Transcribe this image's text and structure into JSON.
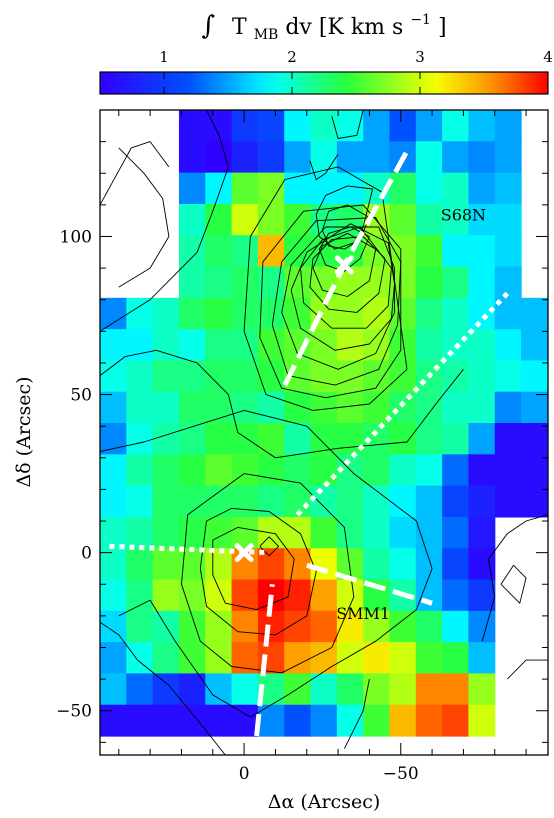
{
  "chart_data": {
    "type": "heatmap",
    "title": "∫ T_MB dv [K km s^-1]",
    "title_parts": {
      "integral": "∫",
      "t": "T",
      "sub": "MB",
      "mid": " dv [K km s",
      "sup": "−1",
      "end": "]"
    },
    "xlabel": "Δα (Arcsec)",
    "ylabel": "Δδ (Arcsec)",
    "xlim": [
      46,
      -97
    ],
    "ylim": [
      -64,
      140
    ],
    "x_ticks": [
      {
        "value": 0,
        "label": "0"
      },
      {
        "value": -50,
        "label": "−50"
      }
    ],
    "y_ticks": [
      {
        "value": -50,
        "label": "−50"
      },
      {
        "value": 0,
        "label": "0"
      },
      {
        "value": 50,
        "label": "50"
      },
      {
        "value": 100,
        "label": "100"
      }
    ],
    "colorbar": {
      "min": 0.5,
      "max": 4,
      "ticks": [
        {
          "value": 1,
          "label": "1"
        },
        {
          "value": 2,
          "label": "2"
        },
        {
          "value": 3,
          "label": "3"
        },
        {
          "value": 4,
          "label": "4"
        }
      ]
    },
    "grid": {
      "x0": 46,
      "dx": -8.4,
      "y_top": 140,
      "dy": -9.9,
      "ncols": 17,
      "nrows": 20
    },
    "cells": [
      [
        null,
        null,
        null,
        0.6,
        0.6,
        1.0,
        1.1,
        1.8,
        2.0,
        1.9,
        1.5,
        1.2,
        1.5,
        1.9,
        1.6,
        1.5,
        null
      ],
      [
        null,
        null,
        null,
        0.6,
        0.5,
        0.8,
        1.0,
        1.5,
        1.9,
        1.5,
        1.5,
        1.4,
        1.9,
        1.5,
        1.4,
        1.5,
        null
      ],
      [
        null,
        null,
        null,
        1.4,
        1.8,
        2.6,
        2.7,
        1.8,
        1.8,
        1.8,
        2.0,
        2.3,
        1.9,
        2.0,
        1.5,
        1.6,
        null
      ],
      [
        null,
        null,
        null,
        2.0,
        2.4,
        3.0,
        2.7,
        2.5,
        2.2,
        2.3,
        2.8,
        2.6,
        2.1,
        2.0,
        1.7,
        1.7,
        null
      ],
      [
        null,
        null,
        null,
        2.1,
        2.3,
        2.2,
        3.4,
        2.4,
        2.4,
        2.4,
        2.7,
        2.7,
        2.5,
        1.8,
        1.8,
        1.7,
        null
      ],
      [
        null,
        null,
        null,
        2.1,
        2.2,
        2.3,
        2.2,
        2.6,
        2.7,
        2.8,
        2.8,
        2.7,
        2.4,
        2.2,
        1.8,
        1.6,
        null
      ],
      [
        1.4,
        1.9,
        2.0,
        2.3,
        2.4,
        2.3,
        2.3,
        2.5,
        2.8,
        2.8,
        2.9,
        2.6,
        2.2,
        2.0,
        1.8,
        1.6,
        1.6
      ],
      [
        1.8,
        1.8,
        2.0,
        1.9,
        2.2,
        2.2,
        2.5,
        2.6,
        2.7,
        2.9,
        2.8,
        2.5,
        2.1,
        2.0,
        2.0,
        1.8,
        1.6
      ],
      [
        1.9,
        2.0,
        2.2,
        2.2,
        2.3,
        2.3,
        2.4,
        2.6,
        2.7,
        2.7,
        2.6,
        2.5,
        2.2,
        2.1,
        2.0,
        1.9,
        1.8
      ],
      [
        1.6,
        2.0,
        2.0,
        2.3,
        2.3,
        2.2,
        2.1,
        2.4,
        2.5,
        2.6,
        2.5,
        2.3,
        2.2,
        2.0,
        2.0,
        1.4,
        1.5
      ],
      [
        1.4,
        1.9,
        2.1,
        2.2,
        2.4,
        2.4,
        2.5,
        2.1,
        2.4,
        2.4,
        2.3,
        2.4,
        2.2,
        2.1,
        1.5,
        0.6,
        0.6
      ],
      [
        1.8,
        2.1,
        2.3,
        2.4,
        2.6,
        2.5,
        2.4,
        2.3,
        2.4,
        2.2,
        2.3,
        2.0,
        1.9,
        1.3,
        0.6,
        0.6,
        0.6
      ],
      [
        1.8,
        1.9,
        2.3,
        2.3,
        2.3,
        2.3,
        2.2,
        2.3,
        2.1,
        2.2,
        2.0,
        1.8,
        1.6,
        1.1,
        0.8,
        0.6,
        0.6
      ],
      [
        2.0,
        2.1,
        2.3,
        2.4,
        2.5,
        2.6,
        2.9,
        2.9,
        2.5,
        2.2,
        2.0,
        1.7,
        1.6,
        1.3,
        0.7,
        null,
        null
      ],
      [
        2.0,
        2.3,
        2.6,
        2.6,
        2.9,
        3.6,
        3.8,
        3.6,
        3.1,
        2.6,
        2.1,
        1.9,
        1.6,
        1.1,
        0.6,
        null,
        null
      ],
      [
        1.9,
        2.2,
        2.8,
        2.7,
        3.0,
        3.8,
        4.0,
        3.9,
        3.5,
        3.0,
        2.4,
        2.1,
        1.6,
        1.3,
        1.0,
        null,
        null
      ],
      [
        1.7,
        2.2,
        2.1,
        2.5,
        2.8,
        3.6,
        3.9,
        3.8,
        3.7,
        3.2,
        2.8,
        2.5,
        2.3,
        1.8,
        1.4,
        null,
        null
      ],
      [
        1.5,
        1.9,
        2.2,
        2.5,
        2.8,
        3.7,
        3.8,
        3.5,
        3.4,
        3.0,
        3.2,
        3.0,
        2.5,
        2.4,
        1.6,
        null,
        null
      ],
      [
        1.6,
        1.3,
        1.0,
        0.8,
        1.6,
        1.9,
        2.2,
        2.5,
        2.0,
        2.3,
        2.7,
        2.9,
        3.6,
        3.6,
        2.8,
        null,
        null
      ],
      [
        0.6,
        0.6,
        0.6,
        0.6,
        0.6,
        0.6,
        1.4,
        1.2,
        1.4,
        1.9,
        2.5,
        3.4,
        3.7,
        3.8,
        3.0,
        null,
        null
      ]
    ],
    "peaks": [
      {
        "x": 0,
        "y": 0
      },
      {
        "x": -32,
        "y": 91
      }
    ],
    "annotations": [
      {
        "text": "S68N",
        "x": -70,
        "y": 105
      },
      {
        "text": "SMM1",
        "x": -38,
        "y": -21
      }
    ],
    "outflow_lines": [
      {
        "style": "dashed",
        "points": [
          [
            -13,
            53
          ],
          [
            -32,
            91
          ],
          [
            -52,
            127
          ]
        ]
      },
      {
        "style": "dashed",
        "points": [
          [
            -4,
            -58
          ],
          [
            -9,
            -10
          ]
        ]
      },
      {
        "style": "dashed",
        "points": [
          [
            -20,
            -4
          ],
          [
            -60,
            -16
          ]
        ]
      },
      {
        "style": "dotted",
        "points": [
          [
            -17,
            12
          ],
          [
            -84,
            82
          ]
        ]
      },
      {
        "style": "dotted",
        "points": [
          [
            43,
            2
          ],
          [
            -8,
            0
          ]
        ]
      }
    ],
    "contours": [
      [
        [
          -41,
          115
        ],
        [
          -38,
          103
        ],
        [
          -35,
          98
        ],
        [
          -29,
          96
        ],
        [
          -24,
          100
        ],
        [
          -23,
          107
        ],
        [
          -26,
          113
        ],
        [
          -33,
          116
        ],
        [
          -41,
          115
        ]
      ],
      [
        [
          -40,
          106
        ],
        [
          -37,
          99
        ],
        [
          -32,
          96
        ],
        [
          -27,
          97
        ],
        [
          -25,
          102
        ],
        [
          -27,
          108
        ],
        [
          -33,
          110
        ],
        [
          -40,
          106
        ]
      ],
      [
        [
          -40,
          100
        ],
        [
          -37,
          93
        ],
        [
          -32,
          89
        ],
        [
          -26,
          91
        ],
        [
          -24,
          96
        ],
        [
          -27,
          101
        ],
        [
          -34,
          103
        ],
        [
          -40,
          100
        ]
      ],
      [
        [
          -42,
          96
        ],
        [
          -40,
          86
        ],
        [
          -33,
          81
        ],
        [
          -25,
          83
        ],
        [
          -22,
          90
        ],
        [
          -25,
          97
        ],
        [
          -33,
          101
        ],
        [
          -42,
          96
        ]
      ],
      [
        [
          -45,
          93
        ],
        [
          -43,
          82
        ],
        [
          -36,
          76
        ],
        [
          -27,
          77
        ],
        [
          -21,
          84
        ],
        [
          -22,
          93
        ],
        [
          -28,
          99
        ],
        [
          -38,
          100
        ],
        [
          -45,
          93
        ]
      ],
      [
        [
          -47,
          90
        ],
        [
          -46,
          78
        ],
        [
          -39,
          71
        ],
        [
          -28,
          71
        ],
        [
          -19,
          79
        ],
        [
          -18,
          90
        ],
        [
          -25,
          99
        ],
        [
          -37,
          103
        ],
        [
          -47,
          90
        ]
      ],
      [
        [
          -48,
          85
        ],
        [
          -47,
          74
        ],
        [
          -40,
          66
        ],
        [
          -29,
          64
        ],
        [
          -18,
          71
        ],
        [
          -15,
          83
        ],
        [
          -20,
          95
        ],
        [
          -34,
          104
        ],
        [
          -46,
          98
        ],
        [
          -48,
          85
        ]
      ],
      [
        [
          -48,
          76
        ],
        [
          -42,
          63
        ],
        [
          -30,
          58
        ],
        [
          -17,
          63
        ],
        [
          -12,
          76
        ],
        [
          -15,
          91
        ],
        [
          -26,
          103
        ],
        [
          -43,
          103
        ],
        [
          -48,
          90
        ],
        [
          -48,
          76
        ]
      ],
      [
        [
          -49,
          72
        ],
        [
          -43,
          58
        ],
        [
          -29,
          53
        ],
        [
          -14,
          56
        ],
        [
          -9,
          72
        ],
        [
          -12,
          92
        ],
        [
          -23,
          105
        ],
        [
          -42,
          106
        ],
        [
          -50,
          92
        ],
        [
          -49,
          72
        ]
      ],
      [
        [
          -50,
          64
        ],
        [
          -42,
          52
        ],
        [
          -26,
          49
        ],
        [
          -12,
          52
        ],
        [
          -5,
          68
        ],
        [
          -6,
          92
        ],
        [
          -19,
          108
        ],
        [
          -38,
          110
        ],
        [
          -50,
          96
        ],
        [
          -50,
          64
        ]
      ],
      [
        [
          -52,
          58
        ],
        [
          -40,
          47
        ],
        [
          -22,
          45
        ],
        [
          -7,
          50
        ],
        [
          0,
          70
        ],
        [
          -2,
          100
        ],
        [
          -13,
          118
        ],
        [
          -30,
          122
        ],
        [
          -44,
          114
        ],
        [
          -52,
          58
        ]
      ],
      [
        [
          -30,
          126
        ],
        [
          -26,
          120
        ],
        [
          -23,
          118
        ],
        [
          -21,
          124
        ]
      ],
      [
        [
          -38,
          140
        ],
        [
          -36,
          132
        ],
        [
          -30,
          131
        ],
        [
          -28,
          138
        ]
      ],
      [
        [
          46,
          70
        ],
        [
          30,
          80
        ],
        [
          15,
          95
        ],
        [
          10,
          108
        ],
        [
          5,
          122
        ],
        [
          8,
          132
        ],
        [
          12,
          140
        ]
      ],
      [
        [
          46,
          56
        ],
        [
          38,
          62
        ],
        [
          28,
          64
        ],
        [
          15,
          60
        ],
        [
          5,
          50
        ],
        [
          2,
          38
        ],
        [
          -10,
          30
        ],
        [
          -30,
          33
        ],
        [
          -52,
          35
        ],
        [
          -62,
          48
        ],
        [
          -70,
          58
        ]
      ],
      [
        [
          40,
          84
        ],
        [
          30,
          90
        ],
        [
          24,
          100
        ],
        [
          26,
          112
        ],
        [
          32,
          120
        ],
        [
          40,
          128
        ]
      ],
      [
        [
          46,
          110
        ],
        [
          36,
          128
        ],
        [
          30,
          130
        ],
        [
          24,
          122
        ]
      ],
      [
        [
          12,
          10
        ],
        [
          4,
          14
        ],
        [
          -8,
          13
        ],
        [
          -18,
          6
        ],
        [
          -23,
          -6
        ],
        [
          -20,
          -20
        ],
        [
          -10,
          -26
        ],
        [
          2,
          -25
        ],
        [
          12,
          -17
        ],
        [
          14,
          -5
        ],
        [
          12,
          10
        ]
      ],
      [
        [
          10,
          4
        ],
        [
          2,
          8
        ],
        [
          -10,
          6
        ],
        [
          -16,
          -2
        ],
        [
          -14,
          -14
        ],
        [
          -4,
          -18
        ],
        [
          6,
          -16
        ],
        [
          10,
          -7
        ],
        [
          10,
          4
        ]
      ],
      [
        [
          -5,
          2
        ],
        [
          -8,
          -1
        ],
        [
          -11,
          2
        ],
        [
          -8,
          5
        ],
        [
          -5,
          2
        ]
      ],
      [
        [
          18,
          12
        ],
        [
          0,
          25
        ],
        [
          -18,
          22
        ],
        [
          -32,
          8
        ],
        [
          -35,
          -14
        ],
        [
          -28,
          -30
        ],
        [
          -12,
          -38
        ],
        [
          4,
          -36
        ],
        [
          14,
          -28
        ],
        [
          20,
          -10
        ],
        [
          18,
          12
        ]
      ],
      [
        [
          40,
          -20
        ],
        [
          30,
          -15
        ],
        [
          22,
          -28
        ],
        [
          10,
          -45
        ],
        [
          -2,
          -52
        ],
        [
          -14,
          -45
        ],
        [
          -28,
          -36
        ],
        [
          -42,
          -28
        ],
        [
          -55,
          -18
        ],
        [
          -60,
          -5
        ],
        [
          -55,
          10
        ],
        [
          -35,
          25
        ],
        [
          -20,
          40
        ],
        [
          0,
          45
        ],
        [
          16,
          40
        ],
        [
          32,
          35
        ],
        [
          46,
          32
        ]
      ],
      [
        [
          46,
          -22
        ],
        [
          40,
          -26
        ],
        [
          34,
          -34
        ],
        [
          24,
          -42
        ],
        [
          14,
          -54
        ],
        [
          6,
          -64
        ]
      ],
      [
        [
          -40,
          -40
        ],
        [
          -38,
          -50
        ],
        [
          -32,
          -62
        ]
      ],
      [
        [
          -76,
          -28
        ],
        [
          -80,
          -14
        ],
        [
          -78,
          -2
        ],
        [
          -84,
          6
        ],
        [
          -90,
          10
        ],
        [
          -97,
          12
        ]
      ],
      [
        [
          -84,
          -40
        ],
        [
          -90,
          -34
        ],
        [
          -97,
          -34
        ]
      ],
      [
        [
          -82,
          -10
        ],
        [
          -86,
          -4
        ],
        [
          -90,
          -8
        ],
        [
          -88,
          -16
        ],
        [
          -82,
          -10
        ]
      ]
    ]
  }
}
